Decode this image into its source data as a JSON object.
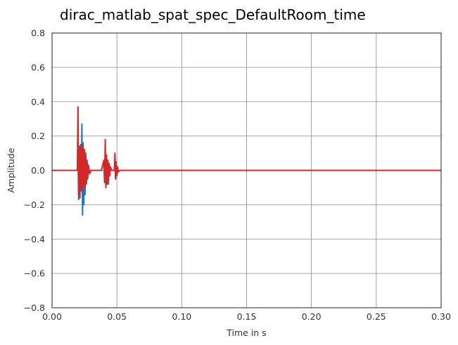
{
  "chart_data": {
    "type": "line",
    "title": "dirac_matlab_spat_spec_DefaultRoom_time",
    "xlabel": "Time in s",
    "ylabel": "Amplitude",
    "xlim": [
      0.0,
      0.3
    ],
    "ylim": [
      -0.8,
      0.8
    ],
    "x_ticks": [
      0.0,
      0.05,
      0.1,
      0.15,
      0.2,
      0.25,
      0.3
    ],
    "x_tick_labels": [
      "0.00",
      "0.05",
      "0.10",
      "0.15",
      "0.20",
      "0.25",
      "0.30"
    ],
    "y_ticks": [
      0.8,
      0.6,
      0.4,
      0.2,
      0.0,
      -0.2,
      -0.4,
      -0.6,
      -0.8
    ],
    "y_tick_labels": [
      "0.8",
      "0.6",
      "0.4",
      "0.2",
      "0.0",
      "−0.2",
      "−0.4",
      "−0.6",
      "−0.8"
    ],
    "grid": true,
    "series": [
      {
        "color": "#1f77b4",
        "x": [
          0.0,
          0.0195,
          0.02,
          0.0205,
          0.021,
          0.0215,
          0.022,
          0.0225,
          0.023,
          0.0235,
          0.024,
          0.0245,
          0.025,
          0.0255,
          0.026,
          0.0265,
          0.027,
          0.0275,
          0.028,
          0.029,
          0.03,
          0.038,
          0.04,
          0.0405,
          0.041,
          0.0415,
          0.042,
          0.0425,
          0.043,
          0.0435,
          0.044,
          0.0445,
          0.045,
          0.046,
          0.048,
          0.0485,
          0.049,
          0.0495,
          0.05,
          0.0505,
          0.051,
          0.052,
          0.3
        ],
        "y": [
          0.0,
          0.0,
          0.1,
          -0.17,
          0.14,
          -0.1,
          0.15,
          -0.12,
          0.27,
          -0.26,
          0.16,
          -0.2,
          0.12,
          -0.14,
          0.1,
          -0.08,
          0.06,
          -0.05,
          0.03,
          -0.02,
          0.0,
          0.0,
          0.05,
          -0.07,
          0.09,
          -0.1,
          0.08,
          -0.06,
          0.05,
          -0.08,
          0.04,
          -0.03,
          0.02,
          0.0,
          0.0,
          0.04,
          -0.05,
          0.05,
          -0.03,
          0.02,
          -0.01,
          0.0,
          0.0
        ]
      },
      {
        "color": "#d62728",
        "x": [
          0.0,
          0.0195,
          0.02,
          0.0205,
          0.021,
          0.0215,
          0.022,
          0.0225,
          0.023,
          0.0235,
          0.024,
          0.0245,
          0.025,
          0.0255,
          0.026,
          0.0265,
          0.027,
          0.0275,
          0.028,
          0.029,
          0.03,
          0.038,
          0.04,
          0.0405,
          0.041,
          0.0415,
          0.042,
          0.0425,
          0.043,
          0.0435,
          0.044,
          0.0445,
          0.045,
          0.046,
          0.048,
          0.0485,
          0.049,
          0.0495,
          0.05,
          0.0505,
          0.051,
          0.052,
          0.3
        ],
        "y": [
          0.0,
          0.0,
          0.37,
          -0.14,
          0.12,
          -0.16,
          0.14,
          -0.1,
          0.15,
          -0.12,
          0.13,
          -0.09,
          0.12,
          -0.1,
          0.08,
          -0.07,
          0.05,
          -0.04,
          0.03,
          -0.02,
          0.0,
          0.0,
          0.06,
          -0.07,
          0.18,
          -0.1,
          0.09,
          -0.08,
          0.06,
          -0.06,
          0.04,
          -0.03,
          0.02,
          0.0,
          0.0,
          0.1,
          -0.05,
          0.04,
          -0.03,
          0.02,
          -0.01,
          0.0,
          0.0
        ]
      }
    ]
  }
}
